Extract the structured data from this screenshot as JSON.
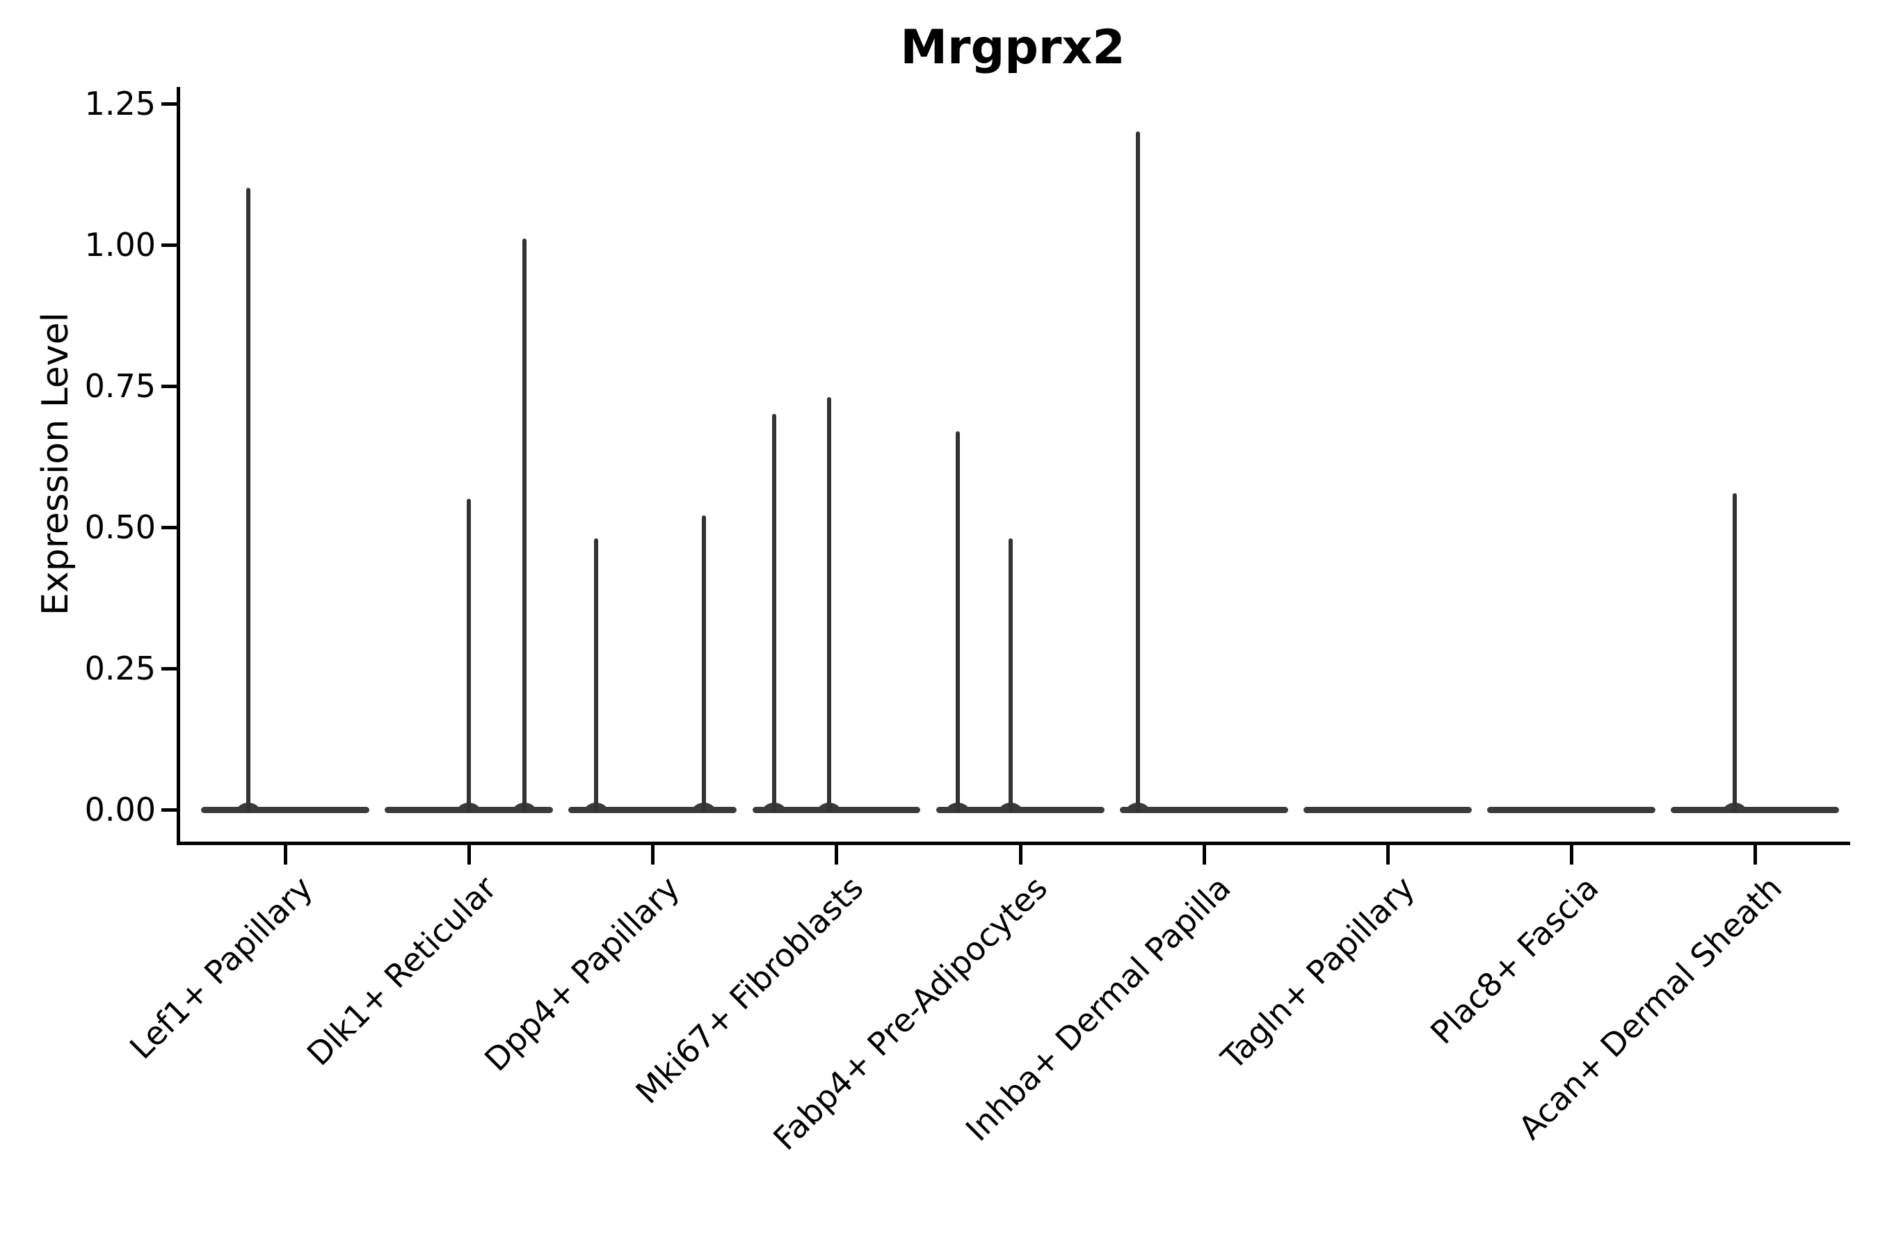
{
  "figure": {
    "title": "Mrgprx2"
  },
  "chart_data": {
    "type": "violin",
    "title": "Mrgprx2",
    "xlabel": "",
    "ylabel": "Expression Level",
    "grid": false,
    "legend": false,
    "categories": [
      "Lef1+ Papillary",
      "Dlk1+ Reticular",
      "Dpp4+ Papillary",
      "Mki67+ Fibroblasts",
      "Fabp4+ Pre-Adipocytes",
      "Inhba+ Dermal Papilla",
      "Tagln+ Papillary",
      "Plac8+ Fascia",
      "Acan+ Dermal Sheath"
    ],
    "yticks": [
      0.0,
      0.25,
      0.5,
      0.75,
      1.0,
      1.25
    ],
    "ylim": [
      -0.057,
      1.279
    ],
    "xlim": [
      -0.58,
      8.5
    ],
    "baseline_value": 0.0,
    "violin_halfwidth": 0.458,
    "colors": {
      "line": "#333333",
      "body": "#3a3a3a",
      "axis": "#000000"
    },
    "violins": [
      {
        "category": "Lef1+ Papillary",
        "spikes": [
          {
            "offset": -0.2,
            "value": 1.1
          }
        ]
      },
      {
        "category": "Dlk1+ Reticular",
        "spikes": [
          {
            "offset": 0.0,
            "value": 0.55
          },
          {
            "offset": 0.3,
            "value": 1.01
          }
        ]
      },
      {
        "category": "Dpp4+ Papillary",
        "spikes": [
          {
            "offset": -0.31,
            "value": 0.48
          },
          {
            "offset": 0.28,
            "value": 0.52
          }
        ]
      },
      {
        "category": "Mki67+ Fibroblasts",
        "spikes": [
          {
            "offset": -0.34,
            "value": 0.7
          },
          {
            "offset": -0.04,
            "value": 0.73
          }
        ]
      },
      {
        "category": "Fabp4+ Pre-Adipocytes",
        "spikes": [
          {
            "offset": -0.34,
            "value": 0.67
          },
          {
            "offset": -0.05,
            "value": 0.48
          }
        ]
      },
      {
        "category": "Inhba+ Dermal Papilla",
        "spikes": [
          {
            "offset": -0.36,
            "value": 1.2
          }
        ]
      },
      {
        "category": "Tagln+ Papillary",
        "spikes": []
      },
      {
        "category": "Plac8+ Fascia",
        "spikes": []
      },
      {
        "category": "Acan+ Dermal Sheath",
        "spikes": [
          {
            "offset": -0.11,
            "value": 0.56
          }
        ]
      }
    ]
  }
}
